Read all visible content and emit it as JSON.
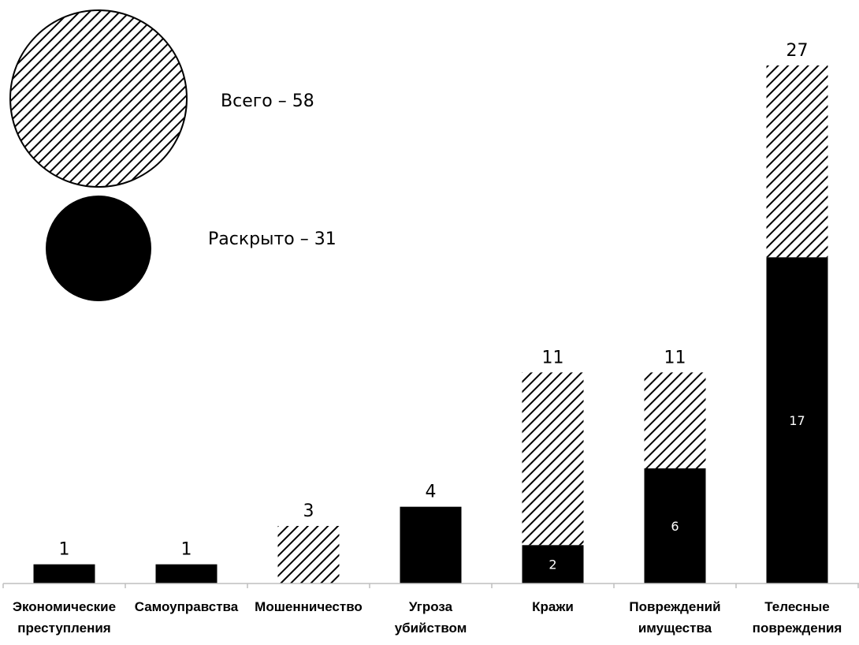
{
  "chart_data": {
    "type": "bar",
    "stacked": true,
    "categories": [
      [
        "Экономические",
        "преступления"
      ],
      [
        "Самоуправства"
      ],
      [
        "Мошенничество"
      ],
      [
        "Угроза",
        "убийством"
      ],
      [
        "Кражи"
      ],
      [
        "Повреждений",
        "имущества"
      ],
      [
        "Телесные",
        "повреждения"
      ]
    ],
    "totals": [
      1,
      1,
      3,
      4,
      11,
      11,
      27
    ],
    "solved": [
      1,
      1,
      0,
      4,
      2,
      6,
      17
    ],
    "total_labels": [
      "1",
      "1",
      "3",
      "4",
      "11",
      "11",
      "27"
    ],
    "solved_labels": [
      "",
      "",
      "",
      "",
      "2",
      "6",
      "17"
    ],
    "ylim": [
      0,
      27
    ],
    "legend": {
      "placement": "top-left",
      "items": [
        {
          "style": "hatched",
          "label": "Всего – 58"
        },
        {
          "style": "solid",
          "label": "Раскрыто – 31"
        }
      ]
    },
    "colors": {
      "solid": "#000000",
      "hatch": "#000000",
      "background": "#ffffff"
    }
  }
}
